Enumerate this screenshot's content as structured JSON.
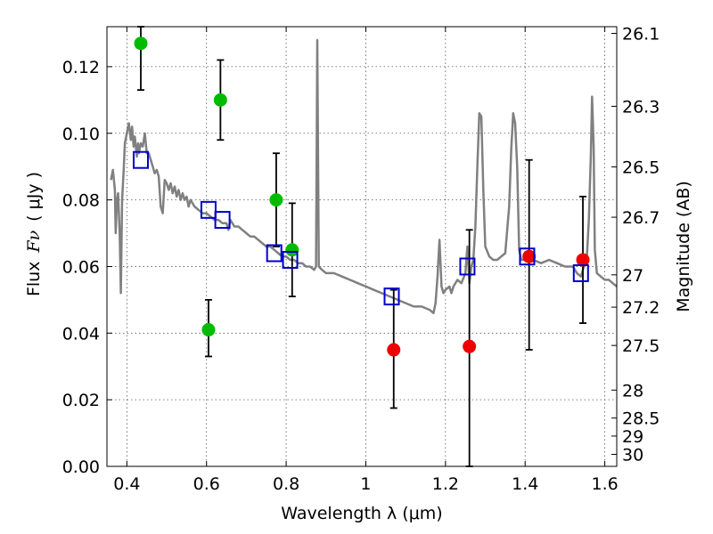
{
  "chart_data": {
    "type": "scatter",
    "xlabel": "Wavelength  λ (μm)",
    "ylabel_prefix": "Flux",
    "ylabel_symbol": "Fν",
    "ylabel_unit": "( μJy )",
    "y2label": "Magnitude (AB)",
    "xlim": [
      0.35,
      1.63
    ],
    "ylim": [
      0.0,
      0.132
    ],
    "grid": true,
    "xticks": [
      {
        "value": 0.4,
        "label": "0.4"
      },
      {
        "value": 0.6,
        "label": "0.6"
      },
      {
        "value": 0.8,
        "label": "0.8"
      },
      {
        "value": 1.0,
        "label": "1"
      },
      {
        "value": 1.2,
        "label": "1.2"
      },
      {
        "value": 1.4,
        "label": "1.4"
      },
      {
        "value": 1.6,
        "label": "1.6"
      }
    ],
    "yticks": [
      {
        "value": 0.0,
        "label": "0.00"
      },
      {
        "value": 0.02,
        "label": "0.02"
      },
      {
        "value": 0.04,
        "label": "0.04"
      },
      {
        "value": 0.06,
        "label": "0.06"
      },
      {
        "value": 0.08,
        "label": "0.08"
      },
      {
        "value": 0.1,
        "label": "0.10"
      },
      {
        "value": 0.12,
        "label": "0.12"
      }
    ],
    "y2ticks": [
      {
        "label": "26.1",
        "flux": 0.13
      },
      {
        "label": "26.3",
        "flux": 0.1081
      },
      {
        "label": "26.5",
        "flux": 0.0899
      },
      {
        "label": "26.7",
        "flux": 0.0748
      },
      {
        "label": "27",
        "flux": 0.0575
      },
      {
        "label": "27.2",
        "flux": 0.0478
      },
      {
        "label": "27.5",
        "flux": 0.0363
      },
      {
        "label": "28",
        "flux": 0.0229
      },
      {
        "label": "28.5",
        "flux": 0.0145
      },
      {
        "label": "29",
        "flux": 0.0091
      },
      {
        "label": "30",
        "flux": 0.0036
      }
    ],
    "model_spectrum": {
      "name": "SED model",
      "color": "#808080",
      "points": [
        [
          0.36,
          0.086
        ],
        [
          0.365,
          0.089
        ],
        [
          0.37,
          0.083
        ],
        [
          0.372,
          0.07
        ],
        [
          0.375,
          0.08
        ],
        [
          0.378,
          0.082
        ],
        [
          0.382,
          0.07
        ],
        [
          0.385,
          0.052
        ],
        [
          0.388,
          0.08
        ],
        [
          0.392,
          0.089
        ],
        [
          0.395,
          0.097
        ],
        [
          0.4,
          0.1
        ],
        [
          0.405,
          0.103
        ],
        [
          0.41,
          0.098
        ],
        [
          0.413,
          0.102
        ],
        [
          0.417,
          0.096
        ],
        [
          0.42,
          0.099
        ],
        [
          0.425,
          0.093
        ],
        [
          0.428,
          0.097
        ],
        [
          0.43,
          0.094
        ],
        [
          0.435,
          0.097
        ],
        [
          0.44,
          0.096
        ],
        [
          0.445,
          0.1
        ],
        [
          0.45,
          0.094
        ],
        [
          0.455,
          0.094
        ],
        [
          0.46,
          0.092
        ],
        [
          0.465,
          0.09
        ],
        [
          0.47,
          0.088
        ],
        [
          0.475,
          0.089
        ],
        [
          0.48,
          0.087
        ],
        [
          0.485,
          0.078
        ],
        [
          0.49,
          0.076
        ],
        [
          0.495,
          0.086
        ],
        [
          0.5,
          0.085
        ],
        [
          0.505,
          0.083
        ],
        [
          0.51,
          0.085
        ],
        [
          0.515,
          0.082
        ],
        [
          0.52,
          0.084
        ],
        [
          0.525,
          0.081
        ],
        [
          0.53,
          0.083
        ],
        [
          0.535,
          0.08
        ],
        [
          0.54,
          0.082
        ],
        [
          0.545,
          0.08
        ],
        [
          0.55,
          0.081
        ],
        [
          0.555,
          0.078
        ],
        [
          0.56,
          0.08
        ],
        [
          0.57,
          0.078
        ],
        [
          0.58,
          0.077
        ],
        [
          0.59,
          0.076
        ],
        [
          0.6,
          0.076
        ],
        [
          0.61,
          0.075
        ],
        [
          0.62,
          0.074
        ],
        [
          0.63,
          0.074
        ],
        [
          0.64,
          0.073
        ],
        [
          0.65,
          0.073
        ],
        [
          0.655,
          0.071
        ],
        [
          0.66,
          0.074
        ],
        [
          0.67,
          0.072
        ],
        [
          0.68,
          0.072
        ],
        [
          0.69,
          0.071
        ],
        [
          0.7,
          0.07
        ],
        [
          0.71,
          0.069
        ],
        [
          0.72,
          0.069
        ],
        [
          0.73,
          0.068
        ],
        [
          0.74,
          0.067
        ],
        [
          0.75,
          0.066
        ],
        [
          0.76,
          0.066
        ],
        [
          0.77,
          0.065
        ],
        [
          0.78,
          0.064
        ],
        [
          0.79,
          0.063
        ],
        [
          0.8,
          0.063
        ],
        [
          0.81,
          0.062
        ],
        [
          0.82,
          0.062
        ],
        [
          0.83,
          0.061
        ],
        [
          0.84,
          0.061
        ],
        [
          0.85,
          0.06
        ],
        [
          0.86,
          0.06
        ],
        [
          0.87,
          0.059
        ],
        [
          0.875,
          0.06
        ],
        [
          0.878,
          0.128
        ],
        [
          0.882,
          0.06
        ],
        [
          0.89,
          0.059
        ],
        [
          0.9,
          0.058
        ],
        [
          0.92,
          0.058
        ],
        [
          0.94,
          0.057
        ],
        [
          0.96,
          0.056
        ],
        [
          0.98,
          0.055
        ],
        [
          1.0,
          0.054
        ],
        [
          1.02,
          0.053
        ],
        [
          1.04,
          0.052
        ],
        [
          1.06,
          0.051
        ],
        [
          1.08,
          0.05
        ],
        [
          1.1,
          0.049
        ],
        [
          1.12,
          0.048
        ],
        [
          1.14,
          0.048
        ],
        [
          1.16,
          0.047
        ],
        [
          1.17,
          0.046
        ],
        [
          1.175,
          0.049
        ],
        [
          1.18,
          0.057
        ],
        [
          1.185,
          0.068
        ],
        [
          1.19,
          0.054
        ],
        [
          1.195,
          0.052
        ],
        [
          1.2,
          0.053
        ],
        [
          1.21,
          0.054
        ],
        [
          1.215,
          0.052
        ],
        [
          1.22,
          0.054
        ],
        [
          1.23,
          0.056
        ],
        [
          1.24,
          0.055
        ],
        [
          1.25,
          0.058
        ],
        [
          1.255,
          0.066
        ],
        [
          1.26,
          0.055
        ],
        [
          1.265,
          0.06
        ],
        [
          1.27,
          0.062
        ],
        [
          1.275,
          0.072
        ],
        [
          1.28,
          0.09
        ],
        [
          1.285,
          0.106
        ],
        [
          1.29,
          0.105
        ],
        [
          1.295,
          0.083
        ],
        [
          1.3,
          0.066
        ],
        [
          1.31,
          0.063
        ],
        [
          1.32,
          0.062
        ],
        [
          1.33,
          0.062
        ],
        [
          1.34,
          0.063
        ],
        [
          1.35,
          0.064
        ],
        [
          1.36,
          0.078
        ],
        [
          1.365,
          0.095
        ],
        [
          1.37,
          0.106
        ],
        [
          1.375,
          0.103
        ],
        [
          1.38,
          0.09
        ],
        [
          1.385,
          0.065
        ],
        [
          1.39,
          0.062
        ],
        [
          1.4,
          0.062
        ],
        [
          1.42,
          0.062
        ],
        [
          1.44,
          0.061
        ],
        [
          1.46,
          0.062
        ],
        [
          1.48,
          0.061
        ],
        [
          1.5,
          0.06
        ],
        [
          1.52,
          0.06
        ],
        [
          1.53,
          0.058
        ],
        [
          1.54,
          0.057
        ],
        [
          1.545,
          0.059
        ],
        [
          1.55,
          0.061
        ],
        [
          1.555,
          0.063
        ],
        [
          1.56,
          0.074
        ],
        [
          1.565,
          0.094
        ],
        [
          1.568,
          0.111
        ],
        [
          1.572,
          0.096
        ],
        [
          1.575,
          0.065
        ],
        [
          1.58,
          0.058
        ],
        [
          1.59,
          0.057
        ],
        [
          1.6,
          0.056
        ],
        [
          1.61,
          0.056
        ],
        [
          1.62,
          0.055
        ],
        [
          1.63,
          0.054
        ]
      ]
    },
    "series": [
      {
        "name": "green points",
        "color": "#00bb00",
        "marker": "circle",
        "points": [
          {
            "x": 0.435,
            "y": 0.127,
            "yerr": [
              0.113,
              0.132
            ]
          },
          {
            "x": 0.635,
            "y": 0.11,
            "yerr": [
              0.098,
              0.122
            ]
          },
          {
            "x": 0.605,
            "y": 0.041,
            "yerr": [
              0.033,
              0.05
            ]
          },
          {
            "x": 0.775,
            "y": 0.08,
            "yerr": [
              0.066,
              0.094
            ]
          },
          {
            "x": 0.815,
            "y": 0.065,
            "yerr": [
              0.051,
              0.079
            ]
          }
        ]
      },
      {
        "name": "red points",
        "color": "#ee0000",
        "marker": "circle",
        "points": [
          {
            "x": 1.07,
            "y": 0.035,
            "yerr": [
              0.0175,
              0.053
            ]
          },
          {
            "x": 1.26,
            "y": 0.036,
            "yerr": [
              0.0,
              0.071
            ]
          },
          {
            "x": 1.41,
            "y": 0.063,
            "yerr": [
              0.035,
              0.092
            ]
          },
          {
            "x": 1.545,
            "y": 0.062,
            "yerr": [
              0.043,
              0.081
            ]
          }
        ]
      },
      {
        "name": "model photometry",
        "color": "#0000cc",
        "marker": "open-square",
        "points": [
          {
            "x": 0.435,
            "y": 0.092
          },
          {
            "x": 0.605,
            "y": 0.077
          },
          {
            "x": 0.64,
            "y": 0.074
          },
          {
            "x": 0.77,
            "y": 0.064
          },
          {
            "x": 0.81,
            "y": 0.062
          },
          {
            "x": 1.065,
            "y": 0.051
          },
          {
            "x": 1.255,
            "y": 0.06
          },
          {
            "x": 1.405,
            "y": 0.063
          },
          {
            "x": 1.54,
            "y": 0.058
          }
        ]
      }
    ]
  }
}
